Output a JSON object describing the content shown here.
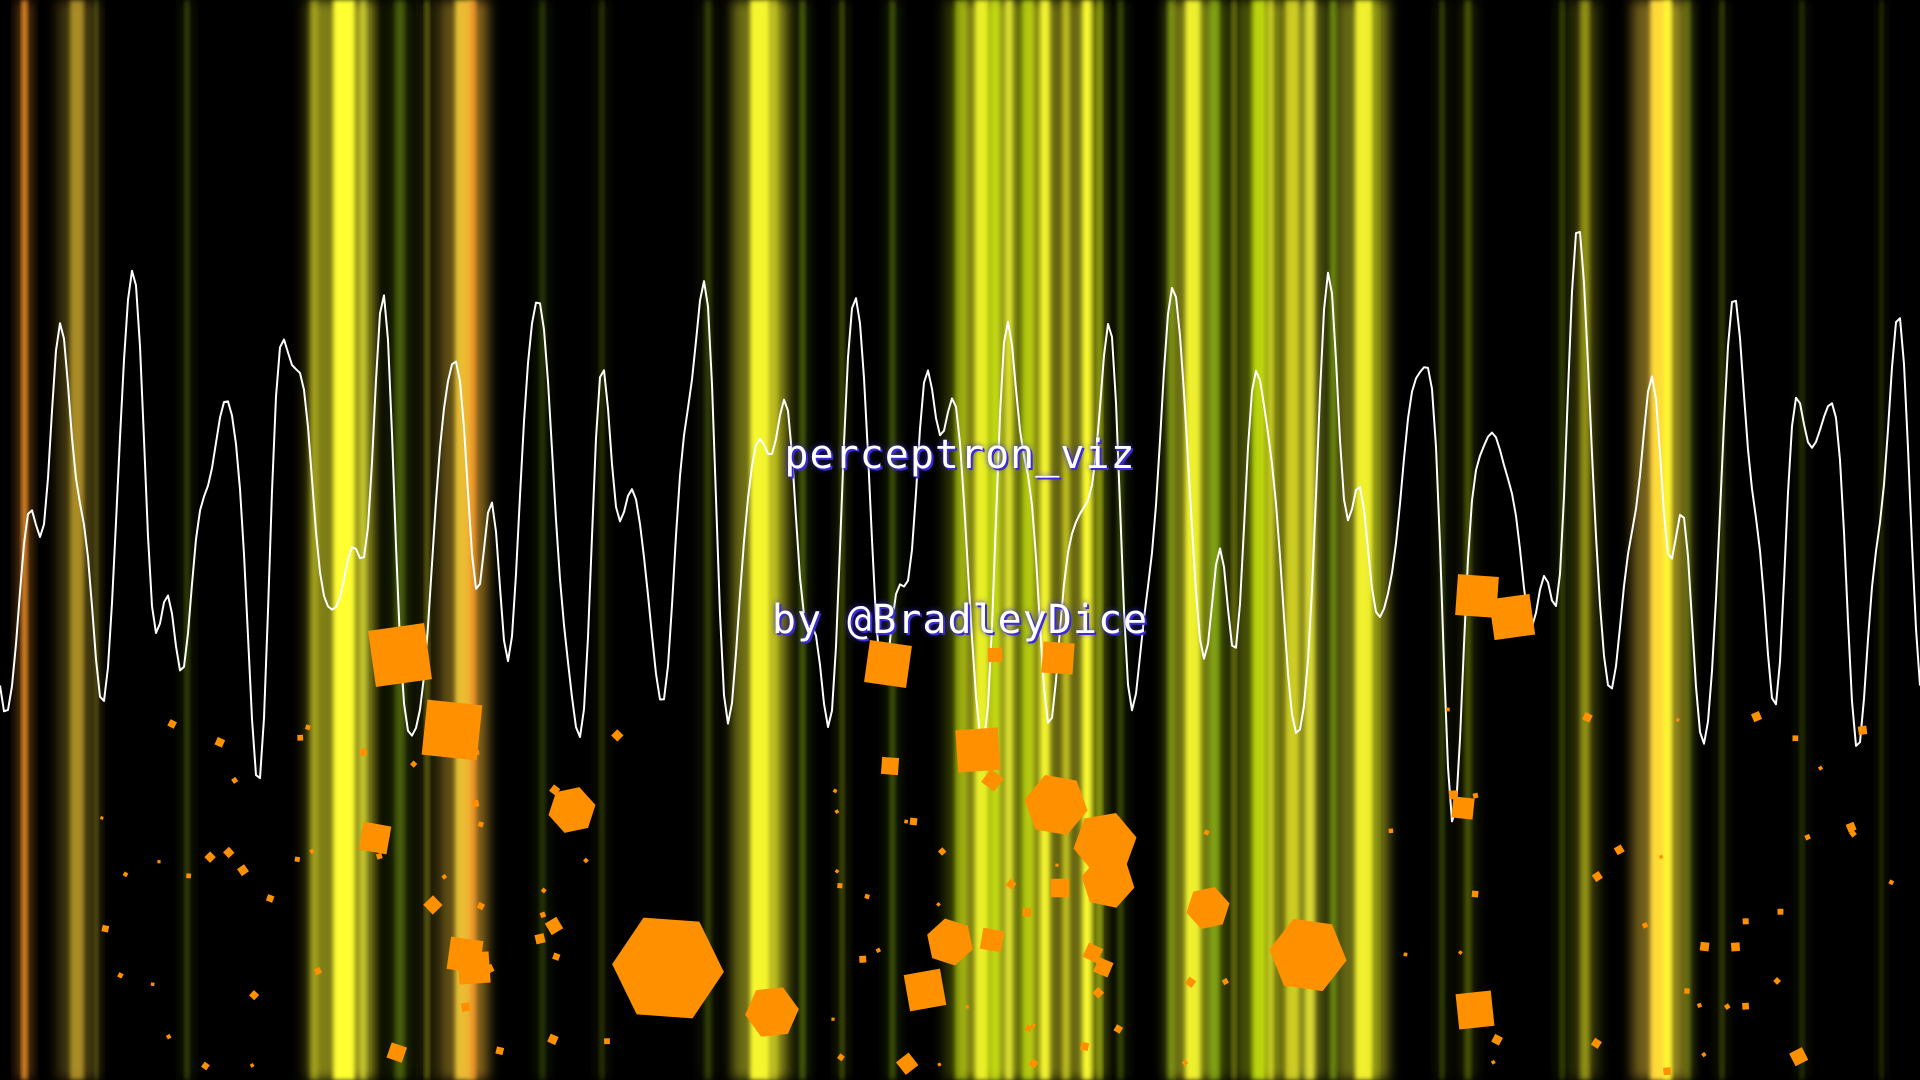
{
  "title": "perceptron_viz",
  "credit": "by @BradleyDice",
  "colors": {
    "background": "#000000",
    "waveform": "#ffffff",
    "bar_palette": [
      "#ffff33",
      "#f2f23a",
      "#ffd43a",
      "#ff9a2a",
      "#c8e60a",
      "#9ccc18",
      "#e6e625"
    ],
    "particles": "#ff9000",
    "text": "#ffffff",
    "text_shadow": "#3a2ad8"
  },
  "visual": {
    "bars": "vertical-light-bars",
    "waveform": "oscilloscope-line",
    "particles": "orange-polyhedra"
  }
}
